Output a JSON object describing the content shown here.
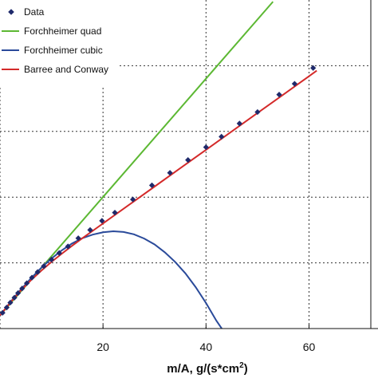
{
  "chart_data": {
    "type": "line",
    "xlabel": "m/A, g/(s*cm",
    "xlabel_sup": "2",
    "xlabel_close": ")",
    "xlim": [
      0,
      72
    ],
    "ylim": [
      0,
      100
    ],
    "x_ticks": [
      20,
      40,
      60
    ],
    "grid": true,
    "grid_style": "dotted",
    "legend_position": "top-left",
    "series": [
      {
        "name": "Data",
        "kind": "scatter",
        "color": "#1f2a6b",
        "marker": "diamond",
        "x": [
          0.5,
          1.3,
          2.0,
          2.8,
          3.5,
          4.3,
          5.2,
          6.2,
          7.3,
          8.5,
          10.0,
          11.5,
          13.2,
          15.2,
          17.5,
          19.8,
          22.3,
          25.8,
          29.5,
          33.0,
          36.5,
          40.0,
          43.0,
          46.5,
          50.0,
          54.2,
          57.2,
          60.8
        ],
        "y": [
          4.8,
          6.4,
          7.9,
          9.4,
          10.8,
          12.2,
          13.8,
          15.5,
          17.2,
          19.0,
          21.0,
          23.0,
          25.0,
          27.5,
          30.0,
          32.8,
          35.3,
          39.3,
          43.6,
          47.4,
          51.3,
          55.2,
          58.4,
          62.4,
          65.9,
          71.2,
          74.5,
          79.3
        ]
      },
      {
        "name": "Forchheimer quad",
        "kind": "line",
        "color": "#5cb833",
        "x": [
          0,
          53
        ],
        "y": [
          4.0,
          99.5
        ]
      },
      {
        "name": "Forchheimer cubic",
        "kind": "line",
        "color": "#2a4a9a",
        "x": [
          0,
          2,
          4,
          6,
          8,
          10,
          12,
          14,
          16,
          18,
          20,
          22,
          24,
          26,
          28,
          30,
          32,
          34,
          36,
          38,
          40,
          42,
          43.5
        ],
        "y": [
          3.9,
          8.0,
          11.8,
          15.3,
          18.5,
          21.3,
          23.8,
          25.9,
          27.5,
          28.6,
          29.3,
          29.6,
          29.4,
          28.7,
          27.4,
          25.6,
          23.2,
          20.3,
          16.8,
          12.6,
          7.8,
          2.4,
          -1.0
        ]
      },
      {
        "name": "Barree and Conway",
        "kind": "line",
        "color": "#d42a2a",
        "x": [
          0,
          2,
          4,
          6,
          8,
          10,
          12,
          14,
          16,
          20,
          25,
          30,
          35,
          40,
          45,
          50,
          55,
          60,
          61.5
        ],
        "y": [
          4.0,
          7.9,
          11.5,
          14.7,
          17.6,
          20.3,
          22.8,
          25.2,
          27.5,
          32.0,
          37.6,
          43.2,
          48.8,
          54.4,
          60.0,
          65.6,
          71.2,
          76.8,
          78.5
        ]
      }
    ]
  }
}
